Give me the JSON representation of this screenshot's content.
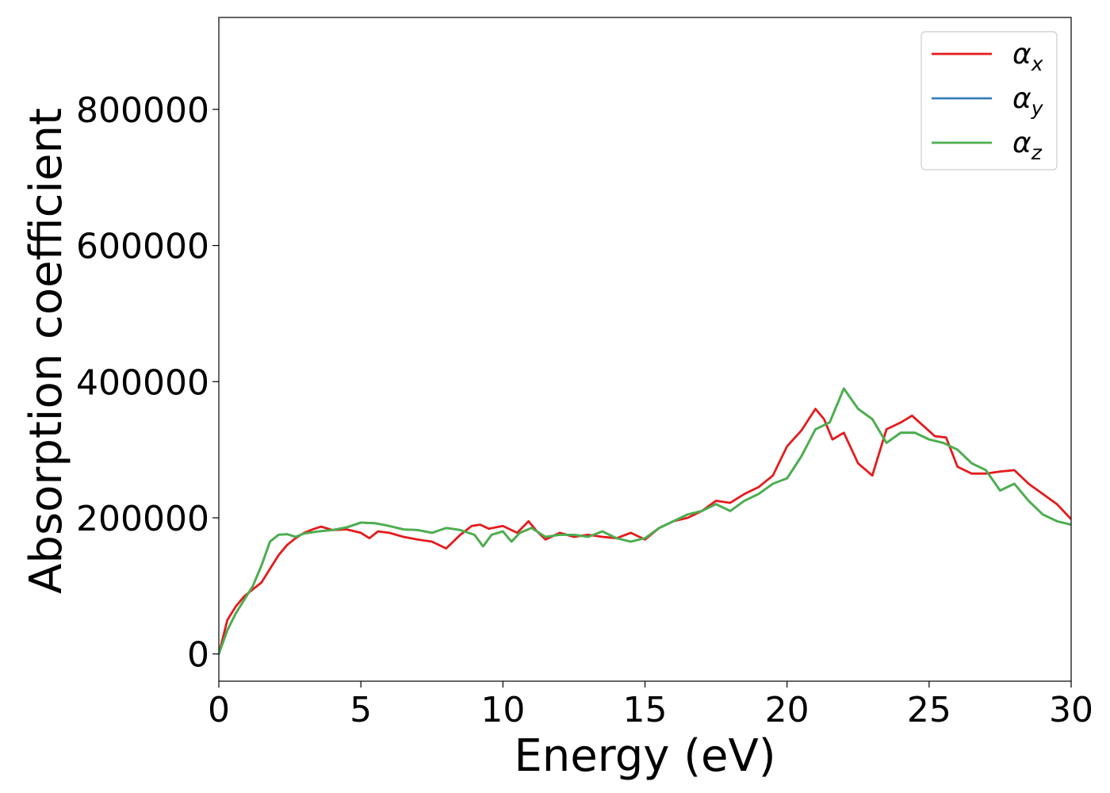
{
  "chart_data": {
    "type": "line",
    "title": "",
    "xlabel": "Energy (eV)",
    "ylabel": "Absorption coefficient",
    "xlim": [
      0,
      30
    ],
    "ylim": [
      -40000,
      935000
    ],
    "xticks": [
      0,
      5,
      10,
      15,
      20,
      25,
      30
    ],
    "xtick_labels": [
      "0",
      "5",
      "10",
      "15",
      "20",
      "25",
      "30"
    ],
    "yticks": [
      0,
      200000,
      400000,
      600000,
      800000
    ],
    "ytick_labels": [
      "0",
      "200000",
      "400000",
      "600000",
      "800000"
    ],
    "grid": false,
    "legend_position": "top-right",
    "series": [
      {
        "name": "α_x",
        "legend_base": "α",
        "legend_sub": "x",
        "color": "#e41a1c",
        "x": [
          0,
          0.3,
          0.6,
          0.9,
          1.2,
          1.5,
          1.8,
          2.1,
          2.4,
          2.7,
          3.0,
          3.3,
          3.6,
          4.0,
          4.5,
          5.0,
          5.3,
          5.6,
          6.0,
          6.5,
          7.0,
          7.5,
          8.0,
          8.5,
          8.9,
          9.2,
          9.5,
          10.0,
          10.5,
          10.9,
          11.2,
          11.5,
          12.0,
          12.5,
          13.0,
          13.5,
          14.0,
          14.5,
          15.0,
          15.5,
          16.0,
          16.5,
          17.0,
          17.5,
          18.0,
          18.5,
          19.0,
          19.5,
          20.0,
          20.5,
          21.0,
          21.3,
          21.6,
          22.0,
          22.5,
          23.0,
          23.5,
          24.0,
          24.4,
          24.8,
          25.2,
          25.6,
          26.0,
          26.5,
          27.0,
          27.5,
          28.0,
          28.5,
          29.0,
          29.5,
          30.0
        ],
        "values": [
          0,
          50000,
          70000,
          85000,
          95000,
          105000,
          125000,
          145000,
          160000,
          170000,
          178000,
          183000,
          187000,
          182000,
          183000,
          178000,
          170000,
          180000,
          178000,
          172000,
          168000,
          165000,
          155000,
          175000,
          188000,
          190000,
          184000,
          188000,
          178000,
          195000,
          180000,
          168000,
          178000,
          172000,
          175000,
          172000,
          170000,
          178000,
          168000,
          185000,
          195000,
          200000,
          210000,
          225000,
          222000,
          235000,
          245000,
          262000,
          305000,
          328000,
          360000,
          345000,
          315000,
          325000,
          280000,
          262000,
          330000,
          340000,
          350000,
          335000,
          320000,
          318000,
          275000,
          265000,
          265000,
          268000,
          270000,
          250000,
          235000,
          220000,
          198000
        ]
      },
      {
        "name": "α_y",
        "legend_base": "α",
        "legend_sub": "y",
        "color": "#377eb8",
        "x": [
          0,
          0.3,
          0.6,
          0.9,
          1.2,
          1.5,
          1.8,
          2.1,
          2.4,
          2.7,
          3.0,
          3.5,
          4.0,
          4.5,
          5.0,
          5.5,
          6.0,
          6.5,
          7.0,
          7.5,
          8.0,
          8.5,
          9.0,
          9.3,
          9.6,
          10.0,
          10.3,
          10.6,
          11.0,
          11.5,
          12.0,
          12.5,
          13.0,
          13.5,
          14.0,
          14.5,
          15.0,
          15.5,
          16.0,
          16.5,
          17.0,
          17.5,
          18.0,
          18.5,
          19.0,
          19.5,
          20.0,
          20.5,
          21.0,
          21.5,
          22.0,
          22.5,
          23.0,
          23.5,
          24.0,
          24.5,
          25.0,
          25.5,
          26.0,
          26.5,
          27.0,
          27.5,
          28.0,
          28.5,
          29.0,
          29.5,
          30.0
        ],
        "values": [
          0,
          35000,
          60000,
          80000,
          100000,
          130000,
          165000,
          175000,
          176000,
          172000,
          177000,
          180000,
          182000,
          186000,
          193000,
          192000,
          188000,
          183000,
          182000,
          178000,
          185000,
          182000,
          175000,
          158000,
          175000,
          180000,
          165000,
          178000,
          185000,
          172000,
          175000,
          175000,
          172000,
          180000,
          170000,
          165000,
          170000,
          185000,
          195000,
          205000,
          210000,
          220000,
          210000,
          225000,
          235000,
          250000,
          258000,
          290000,
          330000,
          340000,
          390000,
          360000,
          345000,
          310000,
          325000,
          325000,
          315000,
          310000,
          300000,
          280000,
          270000,
          240000,
          250000,
          225000,
          205000,
          195000,
          190000
        ]
      },
      {
        "name": "α_z",
        "legend_base": "α",
        "legend_sub": "z",
        "color": "#4daf4a",
        "x": [
          0,
          0.3,
          0.6,
          0.9,
          1.2,
          1.5,
          1.8,
          2.1,
          2.4,
          2.7,
          3.0,
          3.5,
          4.0,
          4.5,
          5.0,
          5.5,
          6.0,
          6.5,
          7.0,
          7.5,
          8.0,
          8.5,
          9.0,
          9.3,
          9.6,
          10.0,
          10.3,
          10.6,
          11.0,
          11.5,
          12.0,
          12.5,
          13.0,
          13.5,
          14.0,
          14.5,
          15.0,
          15.5,
          16.0,
          16.5,
          17.0,
          17.5,
          18.0,
          18.5,
          19.0,
          19.5,
          20.0,
          20.5,
          21.0,
          21.5,
          22.0,
          22.5,
          23.0,
          23.5,
          24.0,
          24.5,
          25.0,
          25.5,
          26.0,
          26.5,
          27.0,
          27.5,
          28.0,
          28.5,
          29.0,
          29.5,
          30.0
        ],
        "values": [
          0,
          35000,
          60000,
          80000,
          100000,
          130000,
          165000,
          175000,
          176000,
          172000,
          177000,
          180000,
          182000,
          186000,
          193000,
          192000,
          188000,
          183000,
          182000,
          178000,
          185000,
          182000,
          175000,
          158000,
          175000,
          180000,
          165000,
          178000,
          185000,
          172000,
          175000,
          175000,
          172000,
          180000,
          170000,
          165000,
          170000,
          185000,
          195000,
          205000,
          210000,
          220000,
          210000,
          225000,
          235000,
          250000,
          258000,
          290000,
          330000,
          340000,
          390000,
          360000,
          345000,
          310000,
          325000,
          325000,
          315000,
          310000,
          300000,
          280000,
          270000,
          240000,
          250000,
          225000,
          205000,
          195000,
          190000
        ]
      }
    ]
  }
}
